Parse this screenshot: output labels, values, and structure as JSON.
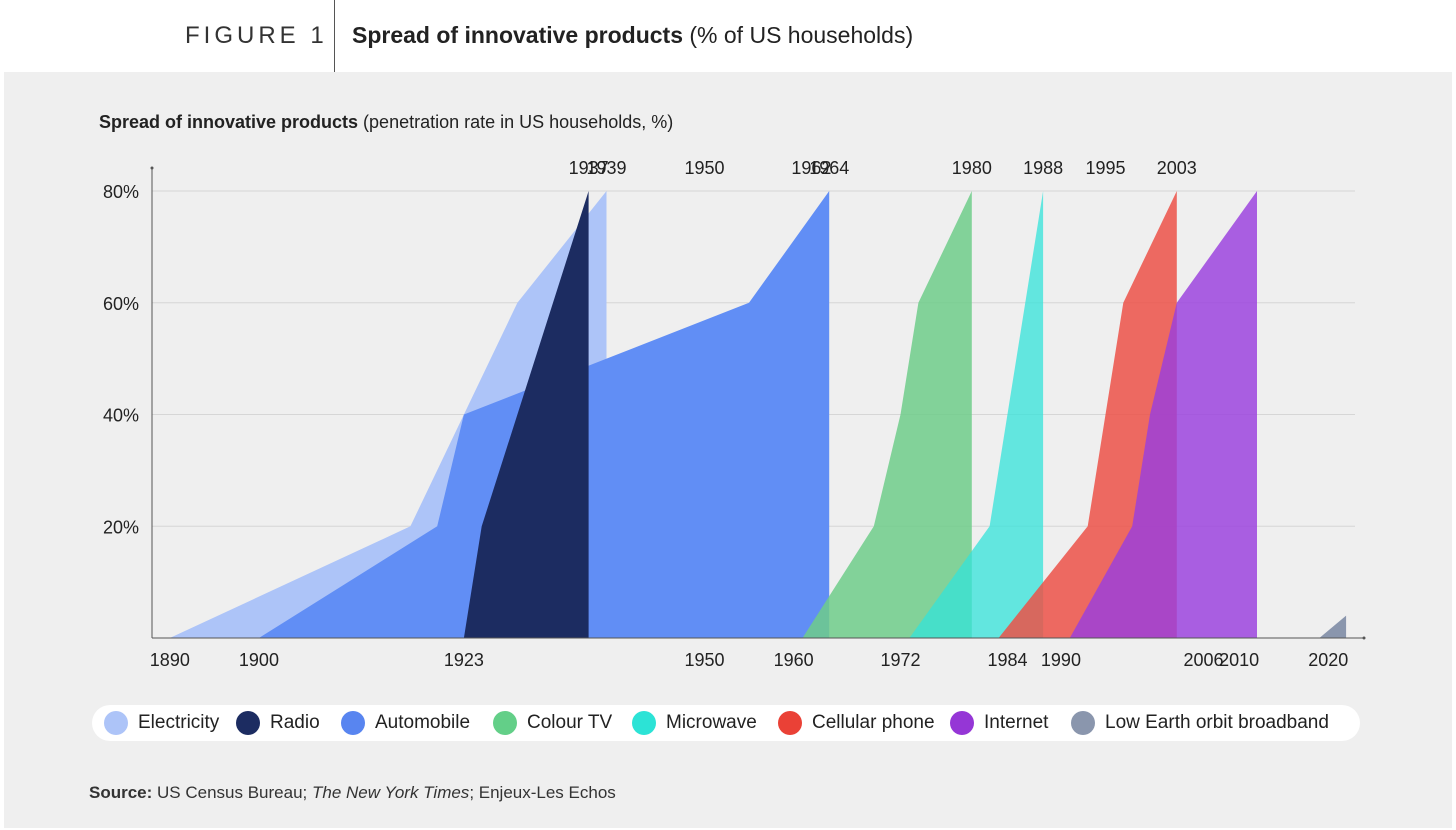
{
  "header": {
    "figure_label": "FIGURE 1",
    "title_bold": "Spread of innovative products",
    "title_rest": " (% of US households)"
  },
  "chart_title": {
    "bold": "Spread of innovative products",
    "rest": " (penetration rate in US households, %)"
  },
  "source": {
    "label": "Source:",
    "part1": " US Census Bureau; ",
    "italic": "The New York Times",
    "part2": "; Enjeux-Les Echos"
  },
  "chart_data": {
    "type": "area",
    "xlim": [
      1888,
      2023
    ],
    "ylim": [
      0,
      80
    ],
    "y_ticks": [
      {
        "value": 20,
        "label": "20%"
      },
      {
        "value": 40,
        "label": "40%"
      },
      {
        "value": 60,
        "label": "60%"
      },
      {
        "value": 80,
        "label": "80%"
      }
    ],
    "x_ticks": [
      1890,
      1900,
      1923,
      1950,
      1960,
      1972,
      1984,
      1990,
      2006,
      2010,
      2020
    ],
    "top_labels": [
      1937,
      1939,
      1950,
      1962,
      1964,
      1980,
      1988,
      1995,
      2003
    ],
    "grid": true,
    "legend_position": "bottom",
    "series": [
      {
        "name": "Electricity",
        "color": "#adc4f8",
        "opacity": 1,
        "points": [
          [
            1890,
            0
          ],
          [
            1917,
            20
          ],
          [
            1923,
            40
          ],
          [
            1929,
            60
          ],
          [
            1939,
            80
          ],
          [
            1939,
            0
          ]
        ]
      },
      {
        "name": "Automobile",
        "color": "#618ef5",
        "opacity": 1,
        "points": [
          [
            1900,
            0
          ],
          [
            1920,
            20
          ],
          [
            1923,
            40
          ],
          [
            1955,
            60
          ],
          [
            1964,
            80
          ],
          [
            1964,
            0
          ]
        ]
      },
      {
        "name": "Radio",
        "color": "#1c2c61",
        "opacity": 1,
        "points": [
          [
            1923,
            0
          ],
          [
            1925,
            20
          ],
          [
            1929,
            40
          ],
          [
            1937,
            80
          ],
          [
            1937,
            0
          ]
        ]
      },
      {
        "name": "Colour TV",
        "color": "#6ecc8a",
        "opacity": 0.85,
        "points": [
          [
            1961,
            0
          ],
          [
            1969,
            20
          ],
          [
            1972,
            40
          ],
          [
            1974,
            60
          ],
          [
            1980,
            80
          ],
          [
            1980,
            0
          ]
        ]
      },
      {
        "name": "Microwave",
        "color": "#33e3d9",
        "opacity": 0.75,
        "points": [
          [
            1973,
            0
          ],
          [
            1982,
            20
          ],
          [
            1988,
            80
          ],
          [
            1988,
            0
          ]
        ]
      },
      {
        "name": "Cellular phone",
        "color": "#ec5148",
        "opacity": 0.85,
        "points": [
          [
            1983,
            0
          ],
          [
            1993,
            20
          ],
          [
            1995,
            40
          ],
          [
            1997,
            60
          ],
          [
            2003,
            80
          ],
          [
            2003,
            0
          ]
        ]
      },
      {
        "name": "Internet",
        "color": "#9a3ede",
        "opacity": 0.82,
        "points": [
          [
            1991,
            0
          ],
          [
            1998,
            20
          ],
          [
            2000,
            40
          ],
          [
            2003,
            60
          ],
          [
            2012,
            80
          ],
          [
            2012,
            0
          ]
        ]
      },
      {
        "name": "Low Earth orbit broadband",
        "color": "#8a96ad",
        "opacity": 1,
        "points": [
          [
            2019,
            0
          ],
          [
            2022,
            4
          ],
          [
            2022,
            0
          ]
        ]
      }
    ]
  },
  "legend": [
    {
      "label": "Electricity",
      "color": "#adc4f8"
    },
    {
      "label": "Radio",
      "color": "#1c2c61"
    },
    {
      "label": "Automobile",
      "color": "#5885f0"
    },
    {
      "label": "Colour TV",
      "color": "#63cf88"
    },
    {
      "label": "Microwave",
      "color": "#2ce3d6"
    },
    {
      "label": "Cellular phone",
      "color": "#ea4136"
    },
    {
      "label": "Internet",
      "color": "#9536d6"
    },
    {
      "label": "Low Earth orbit broadband",
      "color": "#8a96ad"
    }
  ]
}
